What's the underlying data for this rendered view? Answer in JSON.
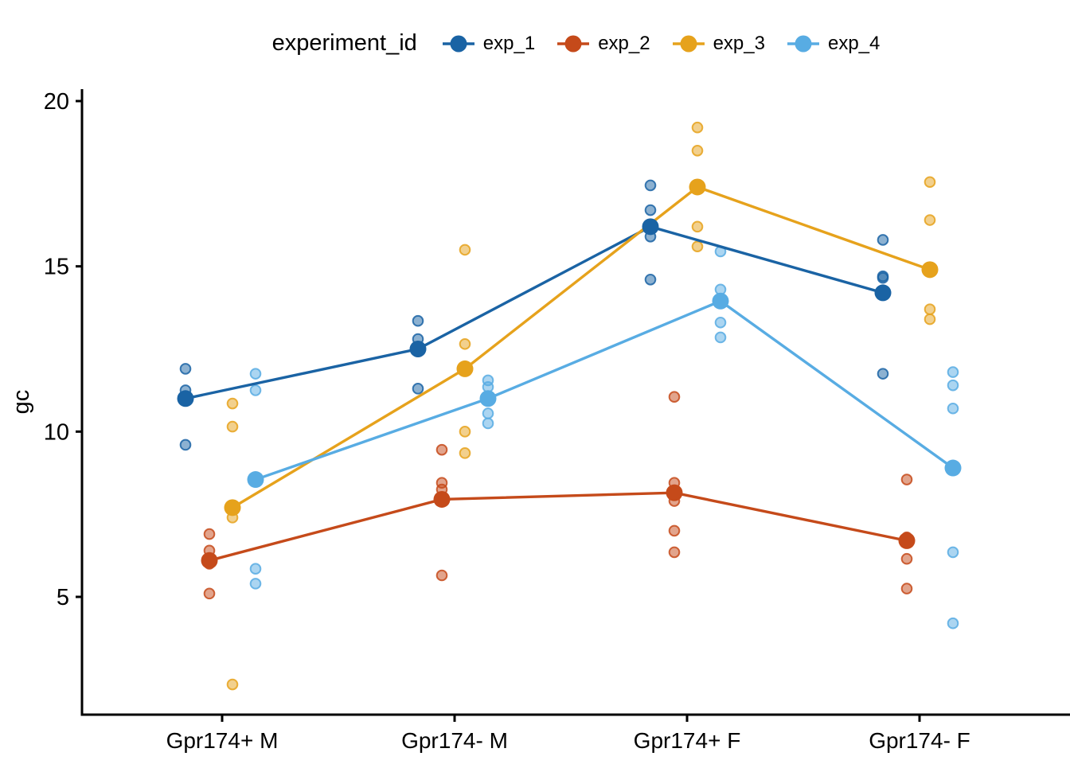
{
  "figure": {
    "background": "#ffffff",
    "axis_color": "#000000"
  },
  "chart_data": {
    "type": "line",
    "subtype": "dodged group means connected by lines, with translucent individual replicate points",
    "title": "",
    "legend_title": "experiment_id",
    "legend_position": "top-center",
    "xlabel": "",
    "ylabel": "gc",
    "categories": [
      "Gpr174+ M",
      "Gpr174- M",
      "Gpr174+ F",
      "Gpr174- F"
    ],
    "y_ticks": [
      20,
      15,
      10,
      5
    ],
    "ylim": [
      1.4,
      20.4
    ],
    "grid": false,
    "series": [
      {
        "name": "exp_1",
        "color": "#1A63A4",
        "means": [
          11.0,
          12.5,
          16.2,
          14.2
        ],
        "points": [
          [
            11.9,
            11.25,
            10.95,
            9.6
          ],
          [
            13.35,
            12.8,
            12.5,
            11.3
          ],
          [
            17.45,
            16.7,
            15.9,
            14.6
          ],
          [
            15.8,
            14.7,
            14.65,
            11.75
          ]
        ]
      },
      {
        "name": "exp_2",
        "color": "#C54A1A",
        "means": [
          6.1,
          7.95,
          8.15,
          6.7
        ],
        "points": [
          [
            6.9,
            6.4,
            6.0,
            5.1
          ],
          [
            9.45,
            8.45,
            8.25,
            5.65
          ],
          [
            11.05,
            8.45,
            7.9,
            7.0,
            6.35
          ],
          [
            8.55,
            6.8,
            6.15,
            5.25
          ]
        ]
      },
      {
        "name": "exp_3",
        "color": "#E6A21C",
        "means": [
          7.7,
          11.9,
          17.4,
          14.9
        ],
        "points": [
          [
            10.85,
            10.15,
            7.4,
            2.35
          ],
          [
            15.5,
            12.65,
            10.0,
            9.35
          ],
          [
            19.2,
            18.5,
            16.2,
            15.6
          ],
          [
            17.55,
            16.4,
            13.7,
            13.4
          ]
        ]
      },
      {
        "name": "exp_4",
        "color": "#58ACE3",
        "means": [
          8.55,
          11.0,
          13.95,
          8.9
        ],
        "points": [
          [
            11.75,
            11.25,
            5.85,
            5.4
          ],
          [
            11.55,
            11.35,
            10.55,
            10.25
          ],
          [
            15.45,
            14.3,
            13.3,
            12.85
          ],
          [
            11.8,
            11.4,
            10.7,
            6.35,
            4.2
          ]
        ]
      }
    ]
  }
}
